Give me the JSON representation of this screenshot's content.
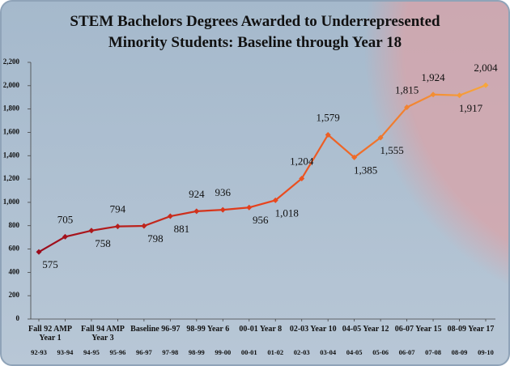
{
  "chart_data": {
    "type": "line",
    "title": "STEM Bachelors Degrees Awarded to Underrepresented Minority Students: Baseline through Year 18",
    "categories": [
      "Fall 92 AMP Year 1",
      null,
      "Fall 94 AMP Year 3",
      null,
      "Baseline 96-97",
      null,
      "98-99 Year 6",
      null,
      "00-01 Year 8",
      null,
      "02-03 Year 10",
      null,
      "04-05 Year 12",
      null,
      "06-07 Year 15",
      null,
      "08-09 Year 17",
      null
    ],
    "years": [
      "92-93",
      "93-94",
      "94-95",
      "95-96",
      "96-97",
      "97-98",
      "98-99",
      "99-00",
      "00-01",
      "01-02",
      "02-03",
      "03-04",
      "04-05",
      "05-06",
      "06-07",
      "07-08",
      "08-09",
      "09-10"
    ],
    "values": [
      575,
      705,
      758,
      794,
      798,
      881,
      924,
      936,
      956,
      1018,
      1204,
      1579,
      1385,
      1555,
      1815,
      1924,
      1917,
      2004
    ],
    "value_labels": [
      "575",
      "705",
      "758",
      "794",
      "798",
      "881",
      "924",
      "936",
      "956",
      "1,018",
      "1,204",
      "1,579",
      "1,385",
      "1,555",
      "1,815",
      "1,924",
      "1,917",
      "2,004"
    ],
    "colors": [
      "#9a0b1c",
      "#e8421c",
      "#f7a63c"
    ],
    "ylim": [
      0,
      2200
    ],
    "yticks": [
      0,
      200,
      400,
      600,
      800,
      {
        "value": 1000,
        "label": "1,000"
      },
      {
        "value": 1200,
        "label": "1,200"
      },
      {
        "value": 1400,
        "label": "1,400"
      },
      {
        "value": 1600,
        "label": "1,600"
      },
      {
        "value": 1800,
        "label": "1,800"
      },
      {
        "value": 2000,
        "label": "2,000"
      },
      {
        "value": 2200,
        "label": "2,200"
      }
    ]
  }
}
